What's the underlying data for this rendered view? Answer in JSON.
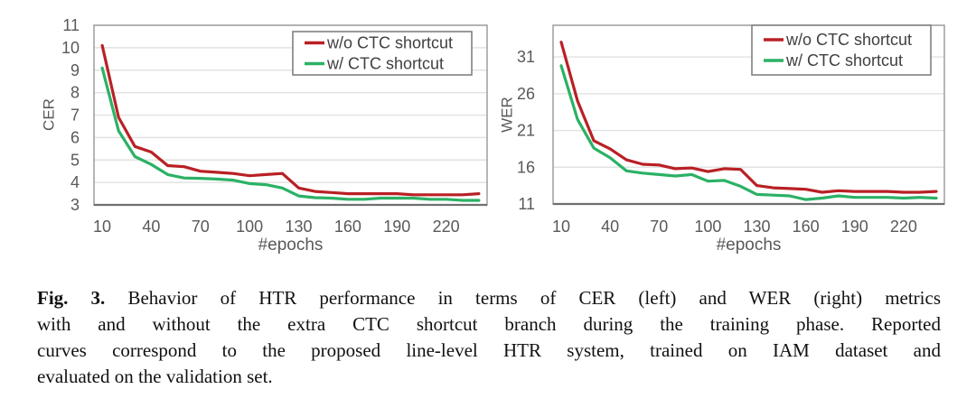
{
  "colors": {
    "without_ctc": "#b92025",
    "with_ctc": "#2bb165",
    "grid": "#e2e2e2",
    "plot_border": "#a3a3a3",
    "axis_line": "#6f6f6f",
    "tick_text": "#595959",
    "legend_text": "#404040",
    "legend_border": "#808080"
  },
  "caption": {
    "label": "Fig. 3.",
    "lines": [
      "Behavior of HTR performance in terms of CER (left) and WER (right) metrics",
      "with and without the extra CTC shortcut branch during the training phase. Reported",
      "curves correspond to the proposed line-level HTR system, trained on IAM dataset and",
      "evaluated on the validation set."
    ]
  },
  "chart_data": [
    {
      "type": "line",
      "title": "",
      "ylabel": "CER",
      "xlabel": "#epochs",
      "x": [
        10,
        20,
        30,
        40,
        50,
        60,
        70,
        80,
        90,
        100,
        110,
        120,
        130,
        140,
        150,
        160,
        170,
        180,
        190,
        200,
        210,
        220,
        230,
        240
      ],
      "series": [
        {
          "name": "w/o CTC shortcut",
          "color_key": "without_ctc",
          "values": [
            10.1,
            6.9,
            5.6,
            5.35,
            4.75,
            4.7,
            4.5,
            4.45,
            4.4,
            4.3,
            4.35,
            4.4,
            3.75,
            3.6,
            3.55,
            3.5,
            3.5,
            3.5,
            3.5,
            3.45,
            3.45,
            3.45,
            3.45,
            3.5
          ]
        },
        {
          "name": "w/ CTC shortcut",
          "color_key": "with_ctc",
          "values": [
            9.1,
            6.3,
            5.15,
            4.8,
            4.35,
            4.2,
            4.18,
            4.15,
            4.1,
            3.95,
            3.9,
            3.75,
            3.4,
            3.32,
            3.3,
            3.25,
            3.25,
            3.3,
            3.3,
            3.3,
            3.25,
            3.25,
            3.2,
            3.2
          ]
        }
      ],
      "ylim": [
        3,
        11
      ],
      "yticks": [
        11,
        10,
        9,
        8,
        7,
        6,
        5,
        4,
        3
      ],
      "xlim": [
        5,
        245
      ],
      "xticks": [
        10,
        40,
        70,
        100,
        130,
        160,
        190,
        220
      ],
      "grid": true,
      "legend_position": "top-right"
    },
    {
      "type": "line",
      "title": "",
      "ylabel": "WER",
      "xlabel": "#epochs",
      "x": [
        10,
        20,
        30,
        40,
        50,
        60,
        70,
        80,
        90,
        100,
        110,
        120,
        130,
        140,
        150,
        160,
        170,
        180,
        190,
        200,
        210,
        220,
        230,
        240
      ],
      "series": [
        {
          "name": "w/o CTC shortcut",
          "color_key": "without_ctc",
          "values": [
            33.0,
            25.0,
            19.6,
            18.5,
            17.0,
            16.4,
            16.3,
            15.8,
            15.9,
            15.4,
            15.8,
            15.7,
            13.5,
            13.2,
            13.1,
            13.0,
            12.6,
            12.8,
            12.7,
            12.7,
            12.7,
            12.6,
            12.6,
            12.7
          ]
        },
        {
          "name": "w/ CTC shortcut",
          "color_key": "with_ctc",
          "values": [
            29.8,
            22.5,
            18.6,
            17.3,
            15.5,
            15.2,
            15.0,
            14.8,
            15.0,
            14.1,
            14.2,
            13.4,
            12.3,
            12.2,
            12.1,
            11.6,
            11.8,
            12.1,
            11.9,
            11.9,
            11.9,
            11.8,
            11.9,
            11.8
          ]
        }
      ],
      "ylim": [
        11,
        35.3
      ],
      "yticks": [
        31,
        26,
        21,
        16,
        11
      ],
      "xlim": [
        5,
        245
      ],
      "xticks": [
        10,
        40,
        70,
        100,
        130,
        160,
        190,
        220
      ],
      "grid": true,
      "legend_position": "top-right"
    }
  ]
}
